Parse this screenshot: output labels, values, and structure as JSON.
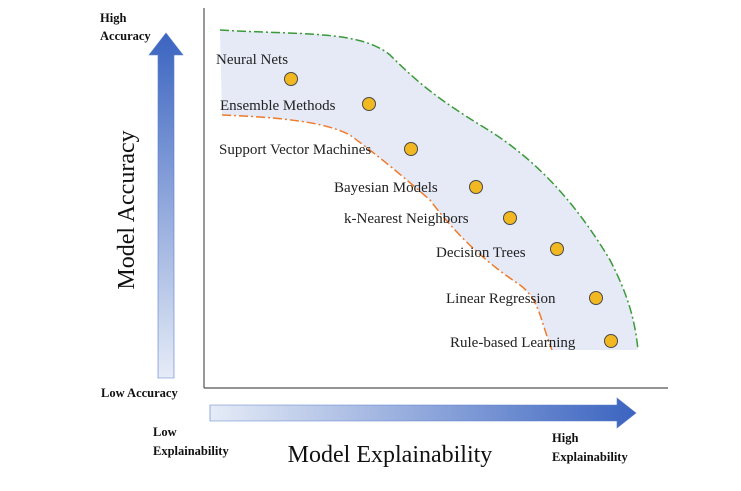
{
  "y_axis": {
    "title": "Model Accuracy",
    "high_label_line1": "High",
    "high_label_line2": "Accuracy",
    "low_label": "Low Accuracy"
  },
  "x_axis": {
    "title": "Model Explainability",
    "low_label_line1": "Low",
    "low_label_line2": "Explainability",
    "high_label_line1": "High",
    "high_label_line2": "Explainability"
  },
  "colors": {
    "arrow_dark": "#3b64c0",
    "arrow_light": "#e6ecf7",
    "region_fill": "#e5eaf6",
    "outer_boundary": "#3a9a3a",
    "inner_boundary": "#f07a2a",
    "dot_fill": "#f2b822",
    "dot_stroke": "#4a4a4a",
    "axes": "#555555"
  },
  "models": [
    "Neural Nets",
    "Ensemble Methods",
    "Support Vector Machines",
    "Bayesian Models",
    "k-Nearest Neighbors",
    "Decision Trees",
    "Linear Regression",
    "Rule-based Learning"
  ]
}
